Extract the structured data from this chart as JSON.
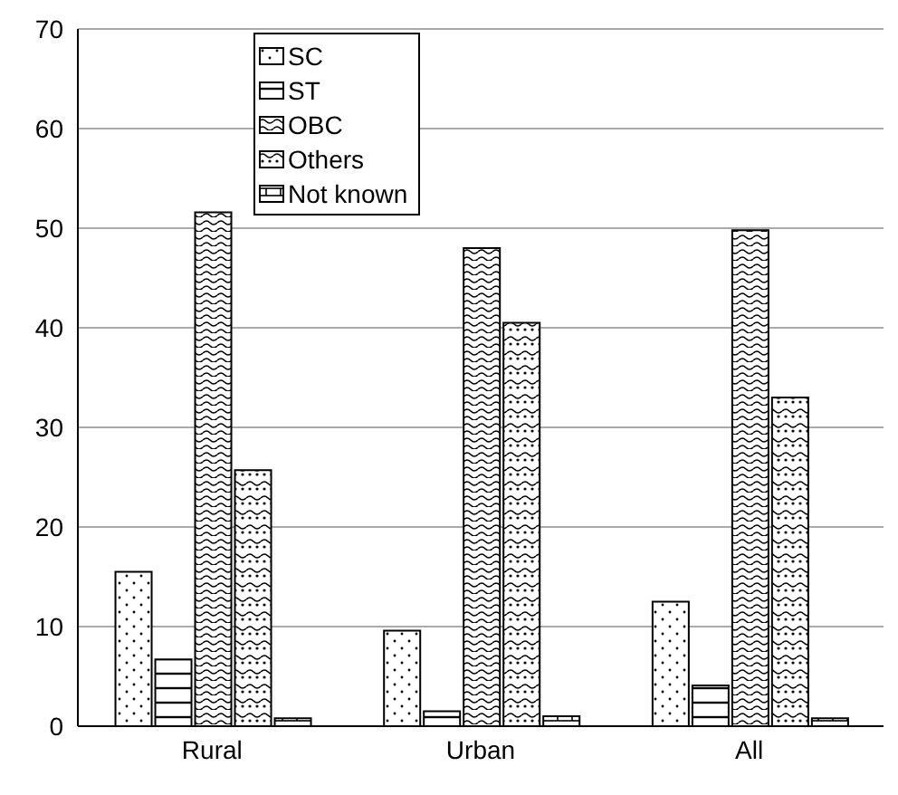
{
  "chart_data": {
    "type": "bar",
    "categories": [
      "Rural",
      "Urban",
      "All"
    ],
    "series": [
      {
        "name": "SC",
        "color": "#000000",
        "values": [
          15.5,
          9.6,
          12.5
        ]
      },
      {
        "name": "ST",
        "color": "#000000",
        "values": [
          6.7,
          1.5,
          4.1
        ]
      },
      {
        "name": "OBC",
        "color": "#000000",
        "values": [
          51.6,
          48.0,
          49.8
        ]
      },
      {
        "name": "Others",
        "color": "#000000",
        "values": [
          25.7,
          40.5,
          33.0
        ]
      },
      {
        "name": "Not known",
        "color": "#000000",
        "values": [
          0.8,
          1.0,
          0.8
        ]
      }
    ],
    "ylim": [
      0,
      70
    ],
    "yticks": [
      0,
      10,
      20,
      30,
      40,
      50,
      60,
      70
    ],
    "grid": "y",
    "legend": "top"
  }
}
